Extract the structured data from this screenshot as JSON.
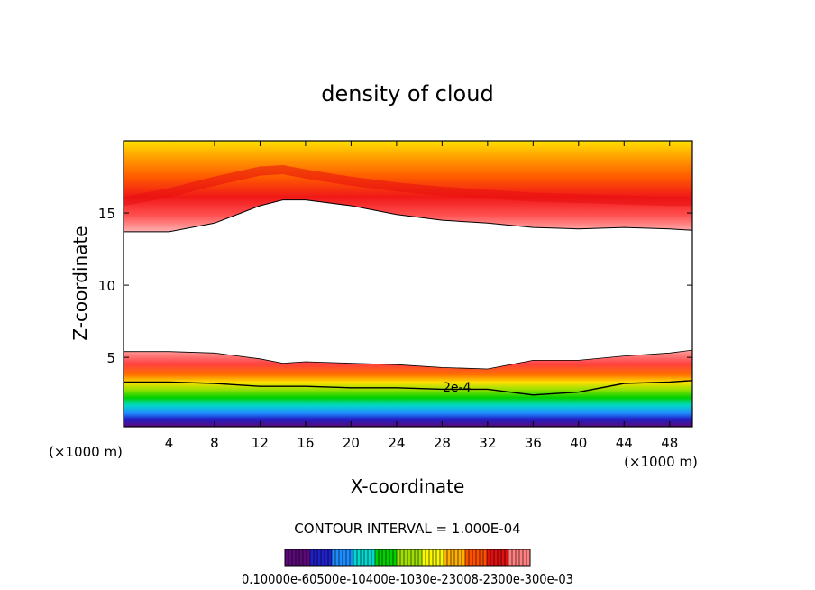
{
  "chart_data": {
    "type": "contour",
    "title": "density of cloud",
    "xlabel": "X-coordinate",
    "ylabel": "Z-coordinate",
    "x_unit": "(×1000 m)",
    "xlim": [
      0,
      50
    ],
    "ylim": [
      0.2,
      20
    ],
    "x_ticks": [
      4,
      8,
      12,
      16,
      20,
      24,
      28,
      32,
      36,
      40,
      44,
      48
    ],
    "y_ticks": [
      5,
      10,
      15
    ],
    "contour_label": "2e-4",
    "contour_interval_text": "CONTOUR INTERVAL = 1.000E-04",
    "colorbar": {
      "min": 0.0001,
      "max": 0.0003,
      "tick_labels_text": "0.10000e-60500e-10400e-1030e-23008-2300e-300e-03",
      "colors": [
        "#5a0a78",
        "#2020c8",
        "#1e8cff",
        "#00d8d0",
        "#00d000",
        "#a0e000",
        "#f8f800",
        "#ffb000",
        "#ff5000",
        "#e01010",
        "#ff8080"
      ]
    },
    "upper_layer": {
      "description": "cloud density field above boundary",
      "boundary_x": [
        0,
        4,
        8,
        12,
        14,
        16,
        20,
        24,
        28,
        32,
        36,
        40,
        44,
        48,
        50
      ],
      "boundary_z": [
        13.7,
        13.7,
        14.3,
        15.5,
        15.9,
        15.9,
        15.5,
        14.9,
        14.5,
        14.3,
        14.0,
        13.9,
        14.0,
        13.9,
        13.8
      ],
      "core_z": [
        15.8,
        16.4,
        17.2,
        17.9,
        18.0,
        17.7,
        17.2,
        16.8,
        16.5,
        16.3,
        16.1,
        16.0,
        15.9,
        15.8,
        15.8
      ]
    },
    "lower_layer": {
      "description": "cloud density field below boundary",
      "top_z": [
        5.4,
        5.4,
        5.3,
        4.9,
        4.6,
        4.7,
        4.6,
        4.5,
        4.3,
        4.2,
        4.8,
        4.8,
        5.1,
        5.3,
        5.5
      ],
      "contour_2e4_z": [
        3.3,
        3.3,
        3.2,
        3.0,
        3.0,
        3.0,
        2.9,
        2.9,
        2.8,
        2.8,
        2.4,
        2.6,
        3.2,
        3.3,
        3.4
      ]
    }
  }
}
